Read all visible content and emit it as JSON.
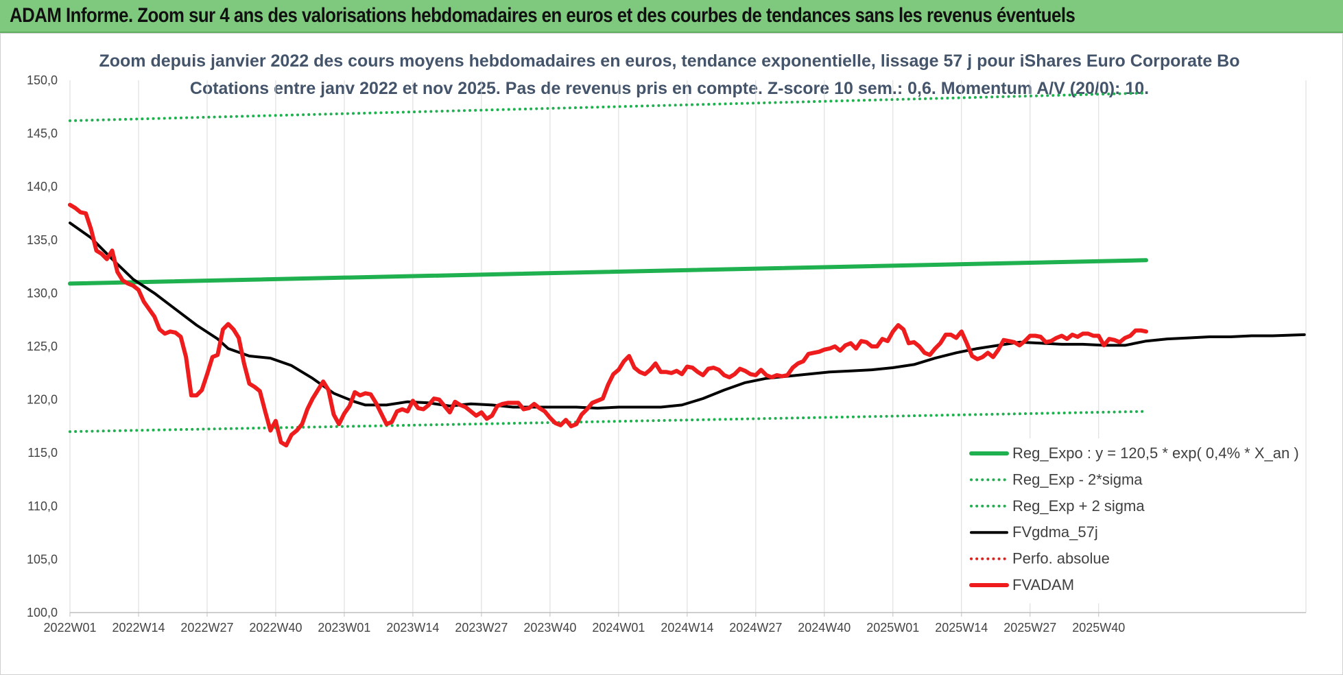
{
  "header": {
    "title": "ADAM Informe. Zoom sur 4 ans des valorisations hebdomadaires en euros et des courbes de tendances sans les revenus éventuels"
  },
  "chart_data": {
    "type": "line",
    "title": "Zoom depuis janvier 2022 des cours moyens hebdomadaires en euros, tendance exponentielle, lissage 57 j pour iShares Euro Corporate Bo",
    "subtitle": "Cotations entre janv 2022 et nov 2025. Pas de revenus pris en compte. Z-score 10 sem.: 0,6. Momentum A/V (20/0): 10.",
    "xlabel": "",
    "ylabel": "",
    "ylim": [
      100,
      150
    ],
    "yticks": [
      "100,0",
      "105,0",
      "110,0",
      "115,0",
      "120,0",
      "125,0",
      "130,0",
      "135,0",
      "140,0",
      "145,0",
      "150,0"
    ],
    "xticks": [
      "2022W01",
      "2022W14",
      "2022W27",
      "2022W40",
      "2023W01",
      "2023W14",
      "2023W27",
      "2023W40",
      "2024W01",
      "2024W14",
      "2024W27",
      "2024W40",
      "2025W01",
      "2025W14",
      "2025W27",
      "2025W40"
    ],
    "x_range_weeks": [
      0,
      204
    ],
    "grid": "vertical",
    "legend_position": "bottom-right",
    "series": [
      {
        "name": "Reg_Expo : y = 120,5 * exp( 0,4% *  X_an )",
        "color": "#1fb04f",
        "style": "solid",
        "points": [
          [
            0,
            130.9
          ],
          [
            204,
            133.1
          ]
        ]
      },
      {
        "name": "Reg_Exp - 2*sigma",
        "color": "#1fb04f",
        "style": "dotted",
        "points": [
          [
            0,
            117.0
          ],
          [
            204,
            118.9
          ]
        ]
      },
      {
        "name": "Reg_Exp + 2 sigma",
        "color": "#1fb04f",
        "style": "dotted",
        "points": [
          [
            0,
            146.2
          ],
          [
            204,
            148.8
          ]
        ]
      },
      {
        "name": "FVgdma_57j",
        "color": "#000000",
        "style": "solid",
        "points": [
          [
            0,
            136.6
          ],
          [
            4,
            135.2
          ],
          [
            8,
            133.2
          ],
          [
            12,
            131.3
          ],
          [
            16,
            130.0
          ],
          [
            20,
            128.5
          ],
          [
            24,
            127.0
          ],
          [
            28,
            125.7
          ],
          [
            30,
            124.8
          ],
          [
            34,
            124.1
          ],
          [
            38,
            123.9
          ],
          [
            42,
            123.2
          ],
          [
            46,
            122.0
          ],
          [
            50,
            120.6
          ],
          [
            54,
            119.8
          ],
          [
            56,
            119.5
          ],
          [
            60,
            119.5
          ],
          [
            64,
            119.8
          ],
          [
            68,
            119.7
          ],
          [
            72,
            119.4
          ],
          [
            76,
            119.6
          ],
          [
            80,
            119.5
          ],
          [
            84,
            119.3
          ],
          [
            90,
            119.3
          ],
          [
            96,
            119.3
          ],
          [
            100,
            119.2
          ],
          [
            104,
            119.3
          ],
          [
            108,
            119.3
          ],
          [
            112,
            119.3
          ],
          [
            116,
            119.5
          ],
          [
            120,
            120.1
          ],
          [
            124,
            120.9
          ],
          [
            128,
            121.6
          ],
          [
            132,
            122.0
          ],
          [
            136,
            122.2
          ],
          [
            140,
            122.4
          ],
          [
            144,
            122.6
          ],
          [
            148,
            122.7
          ],
          [
            152,
            122.8
          ],
          [
            156,
            123.0
          ],
          [
            160,
            123.3
          ],
          [
            164,
            123.9
          ],
          [
            168,
            124.4
          ],
          [
            172,
            124.8
          ],
          [
            176,
            125.1
          ],
          [
            180,
            125.4
          ],
          [
            184,
            125.3
          ],
          [
            188,
            125.2
          ],
          [
            192,
            125.2
          ],
          [
            196,
            125.1
          ],
          [
            200,
            125.1
          ],
          [
            204,
            125.5
          ],
          [
            208,
            125.7
          ],
          [
            212,
            125.8
          ],
          [
            216,
            125.9
          ],
          [
            220,
            125.9
          ],
          [
            224,
            126.0
          ],
          [
            228,
            126.0
          ],
          [
            234,
            126.1
          ]
        ]
      },
      {
        "name": "Perfo. absolue",
        "color": "#e0201b",
        "style": "dotted",
        "points": []
      },
      {
        "name": "FVADAM",
        "color": "#ee1c1c",
        "style": "solid",
        "points": [
          [
            0,
            138.3
          ],
          [
            1,
            138.0
          ],
          [
            2,
            137.6
          ],
          [
            3,
            137.5
          ],
          [
            4,
            136.0
          ],
          [
            5,
            134.0
          ],
          [
            6,
            133.7
          ],
          [
            7,
            133.2
          ],
          [
            8,
            134.0
          ],
          [
            9,
            132.0
          ],
          [
            10,
            131.2
          ],
          [
            11,
            130.9
          ],
          [
            12,
            130.7
          ],
          [
            13,
            130.3
          ],
          [
            14,
            129.2
          ],
          [
            15,
            128.5
          ],
          [
            16,
            127.8
          ],
          [
            17,
            126.6
          ],
          [
            18,
            126.2
          ],
          [
            19,
            126.4
          ],
          [
            20,
            126.3
          ],
          [
            21,
            125.9
          ],
          [
            22,
            124.0
          ],
          [
            23,
            120.4
          ],
          [
            24,
            120.4
          ],
          [
            25,
            120.9
          ],
          [
            26,
            122.4
          ],
          [
            27,
            124.0
          ],
          [
            28,
            124.2
          ],
          [
            29,
            126.6
          ],
          [
            30,
            127.1
          ],
          [
            31,
            126.6
          ],
          [
            32,
            125.8
          ],
          [
            33,
            123.4
          ],
          [
            34,
            121.5
          ],
          [
            35,
            121.2
          ],
          [
            36,
            120.8
          ],
          [
            37,
            118.9
          ],
          [
            38,
            117.1
          ],
          [
            39,
            118.0
          ],
          [
            40,
            116.0
          ],
          [
            41,
            115.7
          ],
          [
            42,
            116.7
          ],
          [
            43,
            117.1
          ],
          [
            44,
            117.7
          ],
          [
            45,
            119.1
          ],
          [
            46,
            120.1
          ],
          [
            47,
            120.9
          ],
          [
            48,
            121.7
          ],
          [
            49,
            120.9
          ],
          [
            50,
            118.6
          ],
          [
            51,
            117.7
          ],
          [
            52,
            118.7
          ],
          [
            53,
            119.4
          ],
          [
            54,
            120.7
          ],
          [
            55,
            120.4
          ],
          [
            56,
            120.6
          ],
          [
            57,
            120.5
          ],
          [
            58,
            119.7
          ],
          [
            59,
            118.7
          ],
          [
            60,
            117.7
          ],
          [
            61,
            117.9
          ],
          [
            62,
            118.9
          ],
          [
            63,
            119.1
          ],
          [
            64,
            118.9
          ],
          [
            65,
            119.9
          ],
          [
            66,
            119.2
          ],
          [
            67,
            119.1
          ],
          [
            68,
            119.5
          ],
          [
            69,
            120.1
          ],
          [
            70,
            120.0
          ],
          [
            71,
            119.4
          ],
          [
            72,
            118.8
          ],
          [
            73,
            119.8
          ],
          [
            74,
            119.5
          ],
          [
            75,
            119.3
          ],
          [
            76,
            118.9
          ],
          [
            77,
            118.5
          ],
          [
            78,
            118.8
          ],
          [
            79,
            118.2
          ],
          [
            80,
            118.5
          ],
          [
            81,
            119.4
          ],
          [
            82,
            119.6
          ],
          [
            83,
            119.7
          ],
          [
            84,
            119.7
          ],
          [
            85,
            119.7
          ],
          [
            86,
            119.1
          ],
          [
            87,
            119.2
          ],
          [
            88,
            119.6
          ],
          [
            89,
            119.2
          ],
          [
            90,
            118.9
          ],
          [
            91,
            118.3
          ],
          [
            92,
            117.8
          ],
          [
            93,
            117.6
          ],
          [
            94,
            118.1
          ],
          [
            95,
            117.5
          ],
          [
            96,
            117.7
          ],
          [
            97,
            118.6
          ],
          [
            98,
            119.1
          ],
          [
            99,
            119.7
          ],
          [
            100,
            119.9
          ],
          [
            101,
            120.1
          ],
          [
            102,
            121.4
          ],
          [
            103,
            122.4
          ],
          [
            104,
            122.8
          ],
          [
            105,
            123.6
          ],
          [
            106,
            124.1
          ],
          [
            107,
            123.0
          ],
          [
            108,
            122.6
          ],
          [
            109,
            122.4
          ],
          [
            110,
            122.8
          ],
          [
            111,
            123.4
          ],
          [
            112,
            122.6
          ],
          [
            113,
            122.6
          ],
          [
            114,
            122.5
          ],
          [
            115,
            122.7
          ],
          [
            116,
            122.4
          ],
          [
            117,
            123.1
          ],
          [
            118,
            123.0
          ],
          [
            119,
            122.6
          ],
          [
            120,
            122.3
          ],
          [
            121,
            122.9
          ],
          [
            122,
            123.0
          ],
          [
            123,
            122.8
          ],
          [
            124,
            122.3
          ],
          [
            125,
            122.1
          ],
          [
            126,
            122.4
          ],
          [
            127,
            122.9
          ],
          [
            128,
            122.7
          ],
          [
            129,
            122.4
          ],
          [
            130,
            122.3
          ],
          [
            131,
            122.8
          ],
          [
            132,
            122.3
          ],
          [
            133,
            122.1
          ],
          [
            134,
            122.3
          ],
          [
            135,
            122.2
          ],
          [
            136,
            122.3
          ],
          [
            137,
            123.0
          ],
          [
            138,
            123.4
          ],
          [
            139,
            123.6
          ],
          [
            140,
            124.3
          ],
          [
            141,
            124.4
          ],
          [
            142,
            124.5
          ],
          [
            143,
            124.7
          ],
          [
            144,
            124.8
          ],
          [
            145,
            125.0
          ],
          [
            146,
            124.6
          ],
          [
            147,
            125.1
          ],
          [
            148,
            125.3
          ],
          [
            149,
            124.8
          ],
          [
            150,
            125.5
          ],
          [
            151,
            125.4
          ],
          [
            152,
            125.0
          ],
          [
            153,
            125.0
          ],
          [
            154,
            125.7
          ],
          [
            155,
            125.5
          ],
          [
            156,
            126.4
          ],
          [
            157,
            127.0
          ],
          [
            158,
            126.6
          ],
          [
            159,
            125.3
          ],
          [
            160,
            125.4
          ],
          [
            161,
            125.0
          ],
          [
            162,
            124.4
          ],
          [
            163,
            124.2
          ],
          [
            164,
            124.8
          ],
          [
            165,
            125.3
          ],
          [
            166,
            126.1
          ],
          [
            167,
            126.1
          ],
          [
            168,
            125.8
          ],
          [
            169,
            126.4
          ],
          [
            170,
            125.3
          ],
          [
            171,
            124.1
          ],
          [
            172,
            123.8
          ],
          [
            173,
            124.0
          ],
          [
            174,
            124.4
          ],
          [
            175,
            124.0
          ],
          [
            176,
            124.7
          ],
          [
            177,
            125.6
          ],
          [
            178,
            125.5
          ],
          [
            179,
            125.4
          ],
          [
            180,
            125.1
          ],
          [
            181,
            125.5
          ],
          [
            182,
            126.0
          ],
          [
            183,
            126.0
          ],
          [
            184,
            125.9
          ],
          [
            185,
            125.4
          ],
          [
            186,
            125.5
          ],
          [
            187,
            125.8
          ],
          [
            188,
            126.0
          ],
          [
            189,
            125.7
          ],
          [
            190,
            126.1
          ],
          [
            191,
            125.9
          ],
          [
            192,
            126.2
          ],
          [
            193,
            126.2
          ],
          [
            194,
            126.0
          ],
          [
            195,
            126.0
          ],
          [
            196,
            125.1
          ],
          [
            197,
            125.7
          ],
          [
            198,
            125.6
          ],
          [
            199,
            125.4
          ],
          [
            200,
            125.8
          ],
          [
            201,
            126.0
          ],
          [
            202,
            126.5
          ],
          [
            203,
            126.5
          ],
          [
            204,
            126.4
          ]
        ]
      }
    ]
  }
}
